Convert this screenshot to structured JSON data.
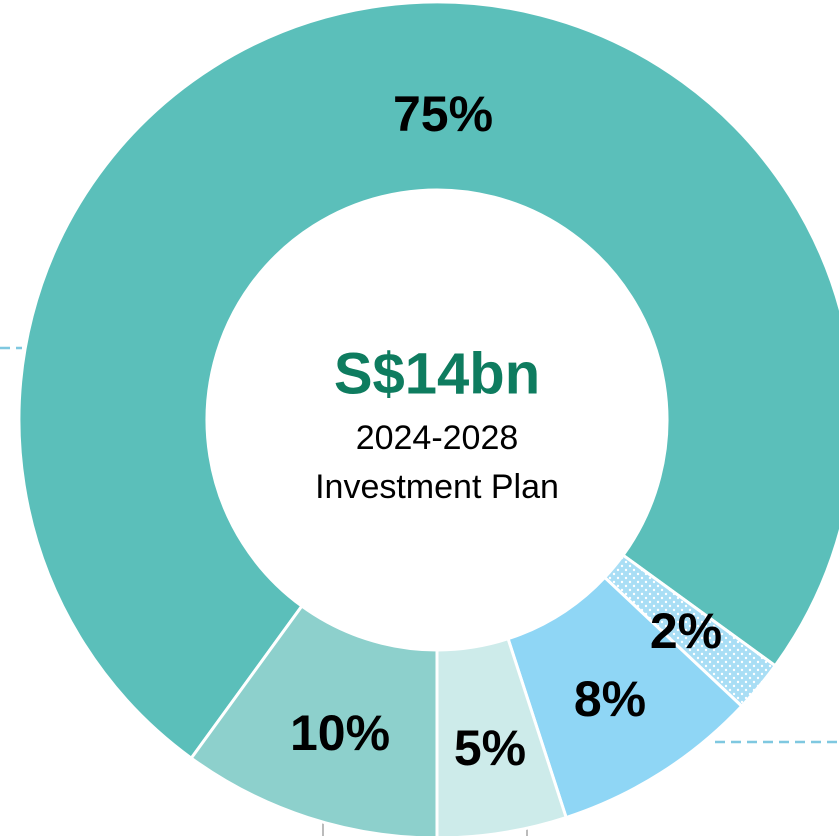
{
  "chart_data": {
    "type": "pie",
    "center_title": "S$14bn",
    "center_lines": [
      "2024-2028",
      "Investment Plan"
    ],
    "values": [
      75,
      2,
      8,
      5,
      10
    ],
    "value_labels": [
      "75%",
      "2%",
      "8%",
      "5%",
      "10%"
    ],
    "colors": [
      "#5bbfba",
      "#a9def5",
      "#8fd6f5",
      "#cdebea",
      "#8dd0cc"
    ],
    "patterns": [
      null,
      "dots",
      null,
      null,
      null
    ]
  }
}
